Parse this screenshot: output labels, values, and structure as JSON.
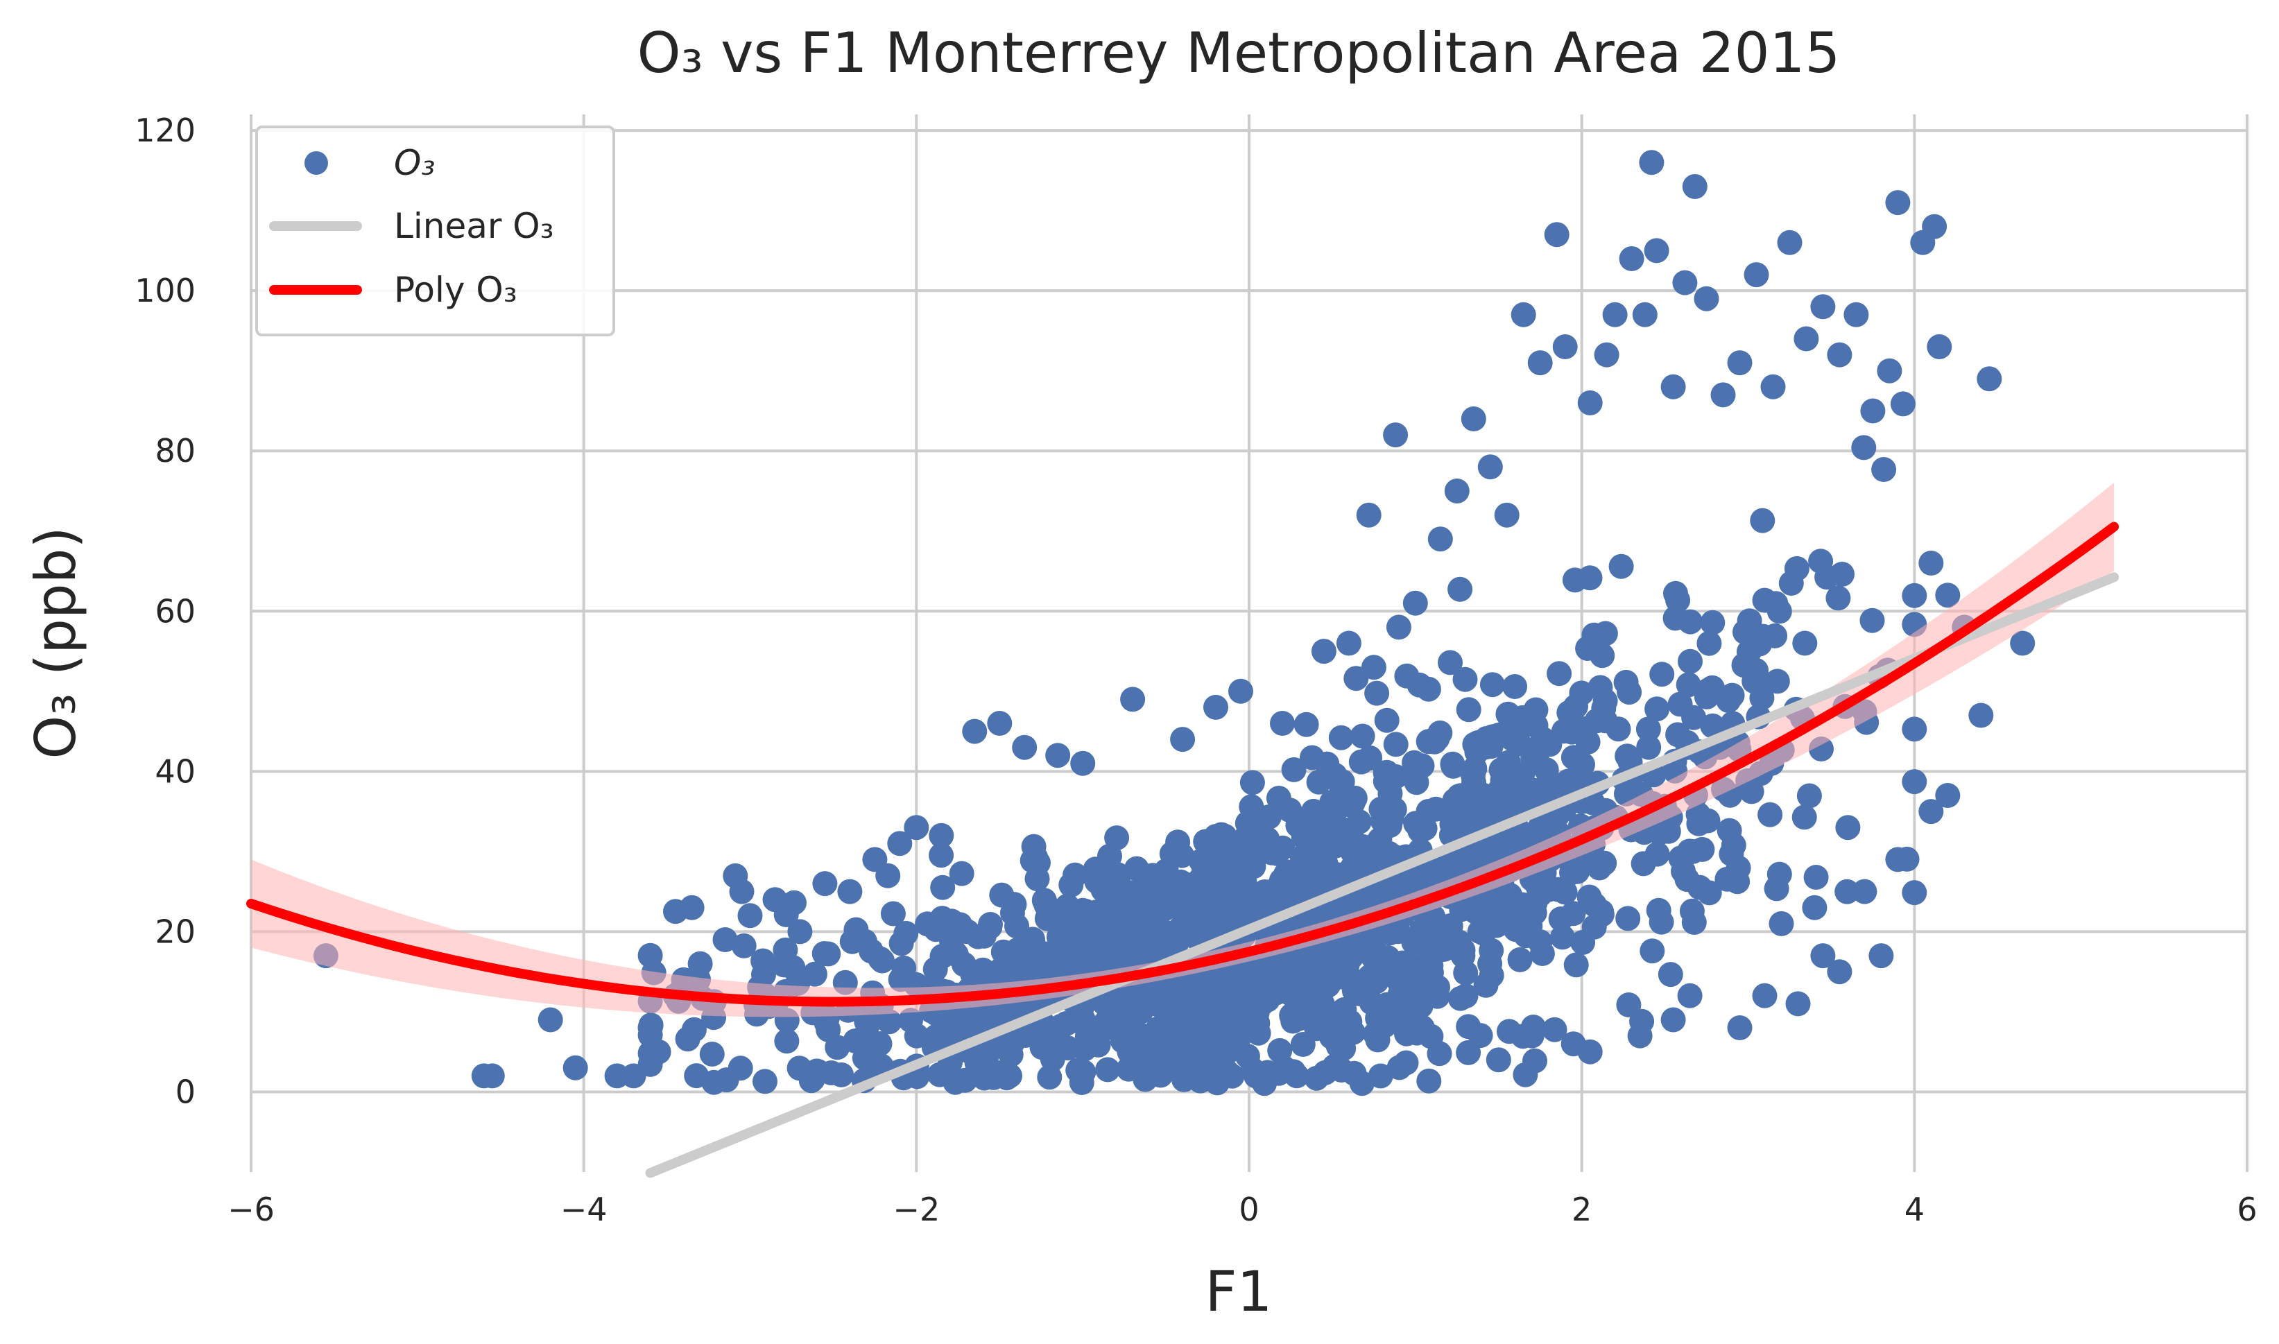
{
  "chart_data": {
    "type": "scatter",
    "title": "O₃ vs F1 Monterrey Metropolitan Area 2015",
    "xlabel": "F1",
    "ylabel": "O₃ (ppb)",
    "xlim": [
      -6,
      6
    ],
    "ylim": [
      -10,
      122
    ],
    "xticks": [
      -6,
      -4,
      -2,
      0,
      2,
      4,
      6
    ],
    "xtick_labels": [
      "−6",
      "−4",
      "−2",
      "0",
      "2",
      "4",
      "6"
    ],
    "yticks": [
      0,
      20,
      40,
      60,
      80,
      100,
      120
    ],
    "ytick_labels": [
      "0",
      "20",
      "40",
      "60",
      "80",
      "100",
      "120"
    ],
    "grid": true,
    "legend_position": "top-left",
    "legend": [
      {
        "key": "scatter",
        "label": "O₃"
      },
      {
        "key": "linear",
        "label": "Linear O₃"
      },
      {
        "key": "poly",
        "label": "Poly O₃"
      }
    ],
    "colors": {
      "scatter": "#4c72b0",
      "linear": "#cccccc",
      "poly": "#ff0000",
      "band": "#ffb3b3",
      "grid": "#cccccc",
      "text": "#262626"
    },
    "series": [
      {
        "name": "O₃",
        "type": "scatter",
        "points": [
          [
            -5.55,
            17
          ],
          [
            -4.6,
            2
          ],
          [
            -4.55,
            2
          ],
          [
            -4.2,
            9
          ],
          [
            -4.05,
            3
          ],
          [
            -3.8,
            2
          ],
          [
            -3.7,
            2
          ],
          [
            -3.6,
            8
          ],
          [
            -3.55,
            5
          ],
          [
            -3.45,
            12
          ],
          [
            -3.4,
            14
          ],
          [
            -3.35,
            23
          ],
          [
            -3.3,
            16
          ],
          [
            -3.15,
            19
          ],
          [
            -3.05,
            25
          ],
          [
            -3.0,
            22
          ],
          [
            -2.85,
            24
          ],
          [
            -2.7,
            20
          ],
          [
            -2.55,
            26
          ],
          [
            -2.4,
            25
          ],
          [
            -2.25,
            29
          ],
          [
            -2.1,
            31
          ],
          [
            -2.0,
            33
          ],
          [
            -1.85,
            32
          ],
          [
            -1.65,
            45
          ],
          [
            -1.5,
            46
          ],
          [
            -1.35,
            43
          ],
          [
            -1.15,
            42
          ],
          [
            -1.0,
            41
          ],
          [
            -0.7,
            49
          ],
          [
            -0.4,
            44
          ],
          [
            -0.2,
            48
          ],
          [
            -0.05,
            50
          ],
          [
            0.2,
            46
          ],
          [
            0.45,
            55
          ],
          [
            0.6,
            56
          ],
          [
            0.75,
            53
          ],
          [
            0.9,
            58
          ],
          [
            0.72,
            72
          ],
          [
            0.88,
            82
          ],
          [
            1.0,
            61
          ],
          [
            1.15,
            69
          ],
          [
            1.25,
            75
          ],
          [
            1.35,
            84
          ],
          [
            1.45,
            78
          ],
          [
            1.55,
            72
          ],
          [
            1.65,
            97
          ],
          [
            1.75,
            91
          ],
          [
            1.85,
            107
          ],
          [
            1.9,
            93
          ],
          [
            2.05,
            86
          ],
          [
            2.15,
            92
          ],
          [
            2.2,
            97
          ],
          [
            2.3,
            104
          ],
          [
            2.38,
            97
          ],
          [
            2.42,
            116
          ],
          [
            2.45,
            105
          ],
          [
            2.55,
            88
          ],
          [
            2.62,
            101
          ],
          [
            2.68,
            113
          ],
          [
            2.75,
            99
          ],
          [
            2.85,
            87
          ],
          [
            2.95,
            91
          ],
          [
            3.05,
            102
          ],
          [
            3.15,
            88
          ],
          [
            3.25,
            106
          ],
          [
            3.35,
            94
          ],
          [
            3.45,
            98
          ],
          [
            3.55,
            92
          ],
          [
            3.65,
            97
          ],
          [
            3.75,
            85
          ],
          [
            3.85,
            90
          ],
          [
            3.9,
            111
          ],
          [
            4.05,
            106
          ],
          [
            4.12,
            108
          ],
          [
            4.15,
            93
          ],
          [
            4.45,
            89
          ],
          [
            4.1,
            66
          ],
          [
            4.2,
            62
          ],
          [
            4.3,
            58
          ],
          [
            4.65,
            56
          ],
          [
            4.4,
            47
          ],
          [
            4.2,
            37
          ],
          [
            4.1,
            35
          ],
          [
            3.9,
            29
          ],
          [
            3.8,
            17
          ],
          [
            3.55,
            15
          ],
          [
            3.45,
            17
          ],
          [
            3.3,
            11
          ],
          [
            3.1,
            12
          ],
          [
            2.95,
            8
          ],
          [
            2.65,
            12
          ],
          [
            2.55,
            9
          ],
          [
            2.35,
            7
          ],
          [
            2.05,
            5
          ],
          [
            1.95,
            6
          ],
          [
            1.7,
            7
          ],
          [
            1.5,
            4
          ],
          [
            3.7,
            25
          ],
          [
            3.6,
            33
          ],
          [
            3.4,
            23
          ],
          [
            3.2,
            21
          ]
        ]
      },
      {
        "name": "Linear O₃",
        "type": "line",
        "x_range": [
          -3.6,
          5.2
        ],
        "intercept": 20.3,
        "slope": 8.45
      },
      {
        "name": "Poly O₃",
        "type": "line",
        "x_range": [
          -6,
          5.2
        ],
        "a": 1.0,
        "b": 5.0,
        "c": 17.5,
        "band_halfwidth_edge": 5.5
      }
    ]
  }
}
